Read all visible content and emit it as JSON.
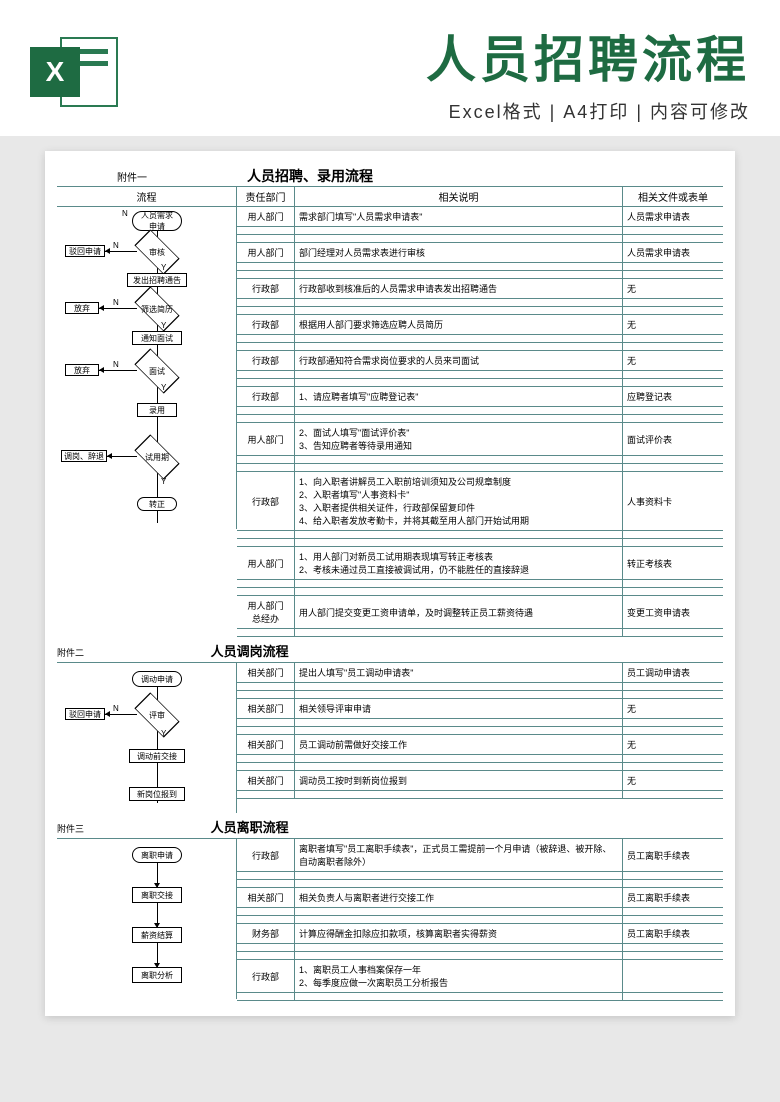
{
  "header": {
    "title": "人员招聘流程",
    "subtitle": "Excel格式 | A4打印 | 内容可修改",
    "icon_letter": "X"
  },
  "section1": {
    "attach": "附件一",
    "title": "人员招聘、录用流程",
    "cols": {
      "flow": "流程",
      "dept": "责任部门",
      "desc": "相关说明",
      "file": "相关文件或表单"
    },
    "rows": [
      {
        "dept": "用人部门",
        "desc": "需求部门填写\"人员需求申请表\"",
        "file": "人员需求申请表"
      },
      {
        "dept": "用人部门",
        "desc": "部门经理对人员需求表进行审核",
        "file": "人员需求申请表"
      },
      {
        "dept": "行政部",
        "desc": "行政部收到核准后的人员需求申请表发出招聘通告",
        "file": "无"
      },
      {
        "dept": "行政部",
        "desc": "根据用人部门要求筛选应聘人员简历",
        "file": "无"
      },
      {
        "dept": "行政部",
        "desc": "行政部通知符合需求岗位要求的人员来司面试",
        "file": "无"
      },
      {
        "dept": "行政部",
        "desc": "1、请应聘者填写\"应聘登记表\"",
        "file": "应聘登记表"
      },
      {
        "dept": "用人部门",
        "desc": "2、面试人填写\"面试评价表\"\n3、告知应聘者等待录用通知",
        "file": "面试评价表"
      },
      {
        "dept": "行政部",
        "desc": "1、向入职者讲解员工入职前培训须知及公司规章制度\n2、入职者填写\"人事资料卡\"\n3、入职者提供相关证件，行政部保留复印件\n4、给入职者发放考勤卡，并将其截至用人部门开始试用期",
        "file": "人事资料卡"
      },
      {
        "dept": "用人部门",
        "desc": "1、用人部门对新员工试用期表现填写转正考核表\n2、考核未通过员工直接被调试用，仍不能胜任的直接辞退",
        "file": "转正考核表"
      },
      {
        "dept": "用人部门\n总经办",
        "desc": "用人部门提交变更工资申请单，及时调整转正员工薪资待遇",
        "file": "变更工资申请表"
      }
    ],
    "flow": {
      "n1": "人员需求\n申请",
      "n2": "审核",
      "n3": "发出招聘通告",
      "n4": "筛选简历",
      "n5": "通知面试",
      "n6": "面试",
      "n7": "录用",
      "n8": "试用期",
      "n9": "转正",
      "reject": "驳回申请",
      "giveup1": "放弃",
      "giveup2": "放弃",
      "dismiss": "调岗、辞退",
      "y": "Y",
      "n": "N"
    }
  },
  "section2": {
    "attach": "附件二",
    "title": "人员调岗流程",
    "rows": [
      {
        "dept": "相关部门",
        "desc": "提出人填写\"员工调动申请表\"",
        "file": "员工调动申请表"
      },
      {
        "dept": "相关部门",
        "desc": "相关领导评审申请",
        "file": "无"
      },
      {
        "dept": "相关部门",
        "desc": "员工调动前需做好交接工作",
        "file": "无"
      },
      {
        "dept": "相关部门",
        "desc": "调动员工按时到新岗位报到",
        "file": "无"
      }
    ],
    "flow": {
      "n1": "调动申请",
      "n2": "评审",
      "n3": "调动前交接",
      "n4": "新岗位报到",
      "reject": "驳回申请",
      "y": "Y",
      "n": "N"
    }
  },
  "section3": {
    "attach": "附件三",
    "title": "人员离职流程",
    "rows": [
      {
        "dept": "行政部",
        "desc": "离职者填写\"员工离职手续表\"，正式员工需提前一个月申请（被辞退、被开除、自动离职者除外）",
        "file": "员工离职手续表"
      },
      {
        "dept": "相关部门",
        "desc": "相关负责人与离职者进行交接工作",
        "file": "员工离职手续表"
      },
      {
        "dept": "财务部",
        "desc": "计算应得酬金扣除应扣款项，核算离职者实得薪资",
        "file": "员工离职手续表"
      },
      {
        "dept": "行政部",
        "desc": "1、离职员工人事档案保存一年\n2、每季度应做一次离职员工分析报告",
        "file": ""
      }
    ],
    "flow": {
      "n1": "离职申请",
      "n2": "离职交接",
      "n3": "薪资结算",
      "n4": "离职分析"
    }
  }
}
